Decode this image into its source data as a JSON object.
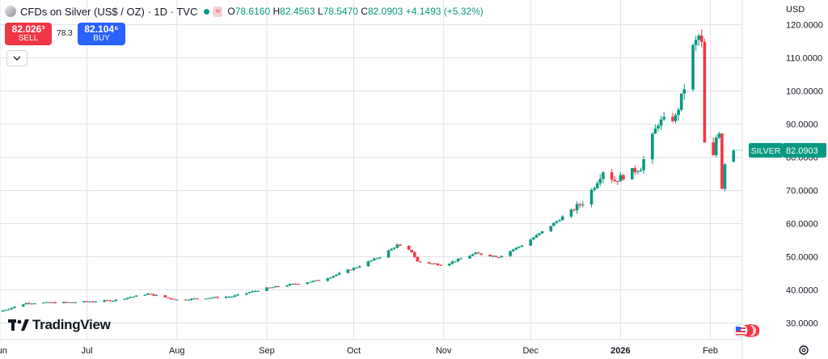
{
  "header": {
    "title": "CFDs on Silver (US$ / OZ) · 1D · TVC",
    "wave_icon": "≈",
    "ohlc": [
      {
        "k": "O",
        "v": "78.6160"
      },
      {
        "k": "H",
        "v": "82.4563"
      },
      {
        "k": "L",
        "v": "78.5470"
      },
      {
        "k": "C",
        "v": "82.0903"
      }
    ],
    "change": "+4.1493 (+5.32%)"
  },
  "trade": {
    "sell_price": "82.026³",
    "sell_label": "SELL",
    "spread": "78.3",
    "buy_price": "82.104⁶",
    "buy_label": "BUY"
  },
  "currency": "USD",
  "logo_text": "TradingView",
  "colors": {
    "up": "#089981",
    "down": "#f23645",
    "grid": "#e0e3eb",
    "text": "#131722"
  },
  "icons": {
    "collapse": "chevron-down-icon",
    "settings": "gear-icon",
    "flag": "us-flag-icon"
  },
  "chart_data": {
    "type": "candlestick",
    "symbol": "SILVER",
    "last_value": 82.0903,
    "last_label": "82.0903",
    "ylim": [
      25,
      125
    ],
    "y_ticks": [
      30,
      40,
      50,
      60,
      70,
      80,
      90,
      100,
      110,
      120
    ],
    "y_tick_labels": [
      "30.0000",
      "40.0000",
      "50.0000",
      "60.0000",
      "70.0000",
      "80.0000",
      "90.0000",
      "100.0000",
      "110.0000",
      "120.0000"
    ],
    "x_ticks": [
      {
        "label": "Jun",
        "date": "2025-06-01"
      },
      {
        "label": "Jul",
        "date": "2025-07-01"
      },
      {
        "label": "Aug",
        "date": "2025-08-01"
      },
      {
        "label": "Sep",
        "date": "2025-09-01"
      },
      {
        "label": "Oct",
        "date": "2025-10-01"
      },
      {
        "label": "Nov",
        "date": "2025-11-01"
      },
      {
        "label": "Dec",
        "date": "2025-12-01"
      },
      {
        "label": "2026",
        "date": "2026-01-01"
      },
      {
        "label": "Feb",
        "date": "2026-02-01"
      }
    ],
    "xlim": [
      "2025-06-01",
      "2026-02-12"
    ],
    "grid": true,
    "close_keypoints": [
      {
        "date": "2025-06-01",
        "close": 33.5
      },
      {
        "date": "2025-06-10",
        "close": 36.0
      },
      {
        "date": "2025-06-25",
        "close": 36.2
      },
      {
        "date": "2025-07-10",
        "close": 36.8
      },
      {
        "date": "2025-07-22",
        "close": 38.8
      },
      {
        "date": "2025-08-01",
        "close": 37.0
      },
      {
        "date": "2025-08-20",
        "close": 38.0
      },
      {
        "date": "2025-09-01",
        "close": 40.5
      },
      {
        "date": "2025-09-20",
        "close": 43.0
      },
      {
        "date": "2025-10-01",
        "close": 46.5
      },
      {
        "date": "2025-10-10",
        "close": 50.0
      },
      {
        "date": "2025-10-16",
        "close": 53.5
      },
      {
        "date": "2025-10-21",
        "close": 51.5
      },
      {
        "date": "2025-10-23",
        "close": 48.5
      },
      {
        "date": "2025-11-01",
        "close": 47.5
      },
      {
        "date": "2025-11-12",
        "close": 51.0
      },
      {
        "date": "2025-11-20",
        "close": 50.0
      },
      {
        "date": "2025-11-28",
        "close": 53.5
      },
      {
        "date": "2025-12-05",
        "close": 57.5
      },
      {
        "date": "2025-12-12",
        "close": 62.0
      },
      {
        "date": "2025-12-20",
        "close": 67.0
      },
      {
        "date": "2025-12-26",
        "close": 76.0
      },
      {
        "date": "2025-12-30",
        "close": 73.0
      },
      {
        "date": "2026-01-08",
        "close": 77.0
      },
      {
        "date": "2026-01-14",
        "close": 90.5
      },
      {
        "date": "2026-01-20",
        "close": 92.0
      },
      {
        "date": "2026-01-23",
        "close": 101.0
      },
      {
        "date": "2026-01-26",
        "close": 113.0
      },
      {
        "date": "2026-01-28",
        "close": 116.5
      },
      {
        "date": "2026-01-29",
        "close": 114.0
      },
      {
        "date": "2026-01-30",
        "close": 84.0
      },
      {
        "date": "2026-02-02",
        "close": 80.0
      },
      {
        "date": "2026-02-03",
        "close": 86.0
      },
      {
        "date": "2026-02-04",
        "close": 88.0
      },
      {
        "date": "2026-02-05",
        "close": 71.0
      },
      {
        "date": "2026-02-06",
        "close": 78.6
      },
      {
        "date": "2026-02-09",
        "close": 82.09
      }
    ]
  }
}
